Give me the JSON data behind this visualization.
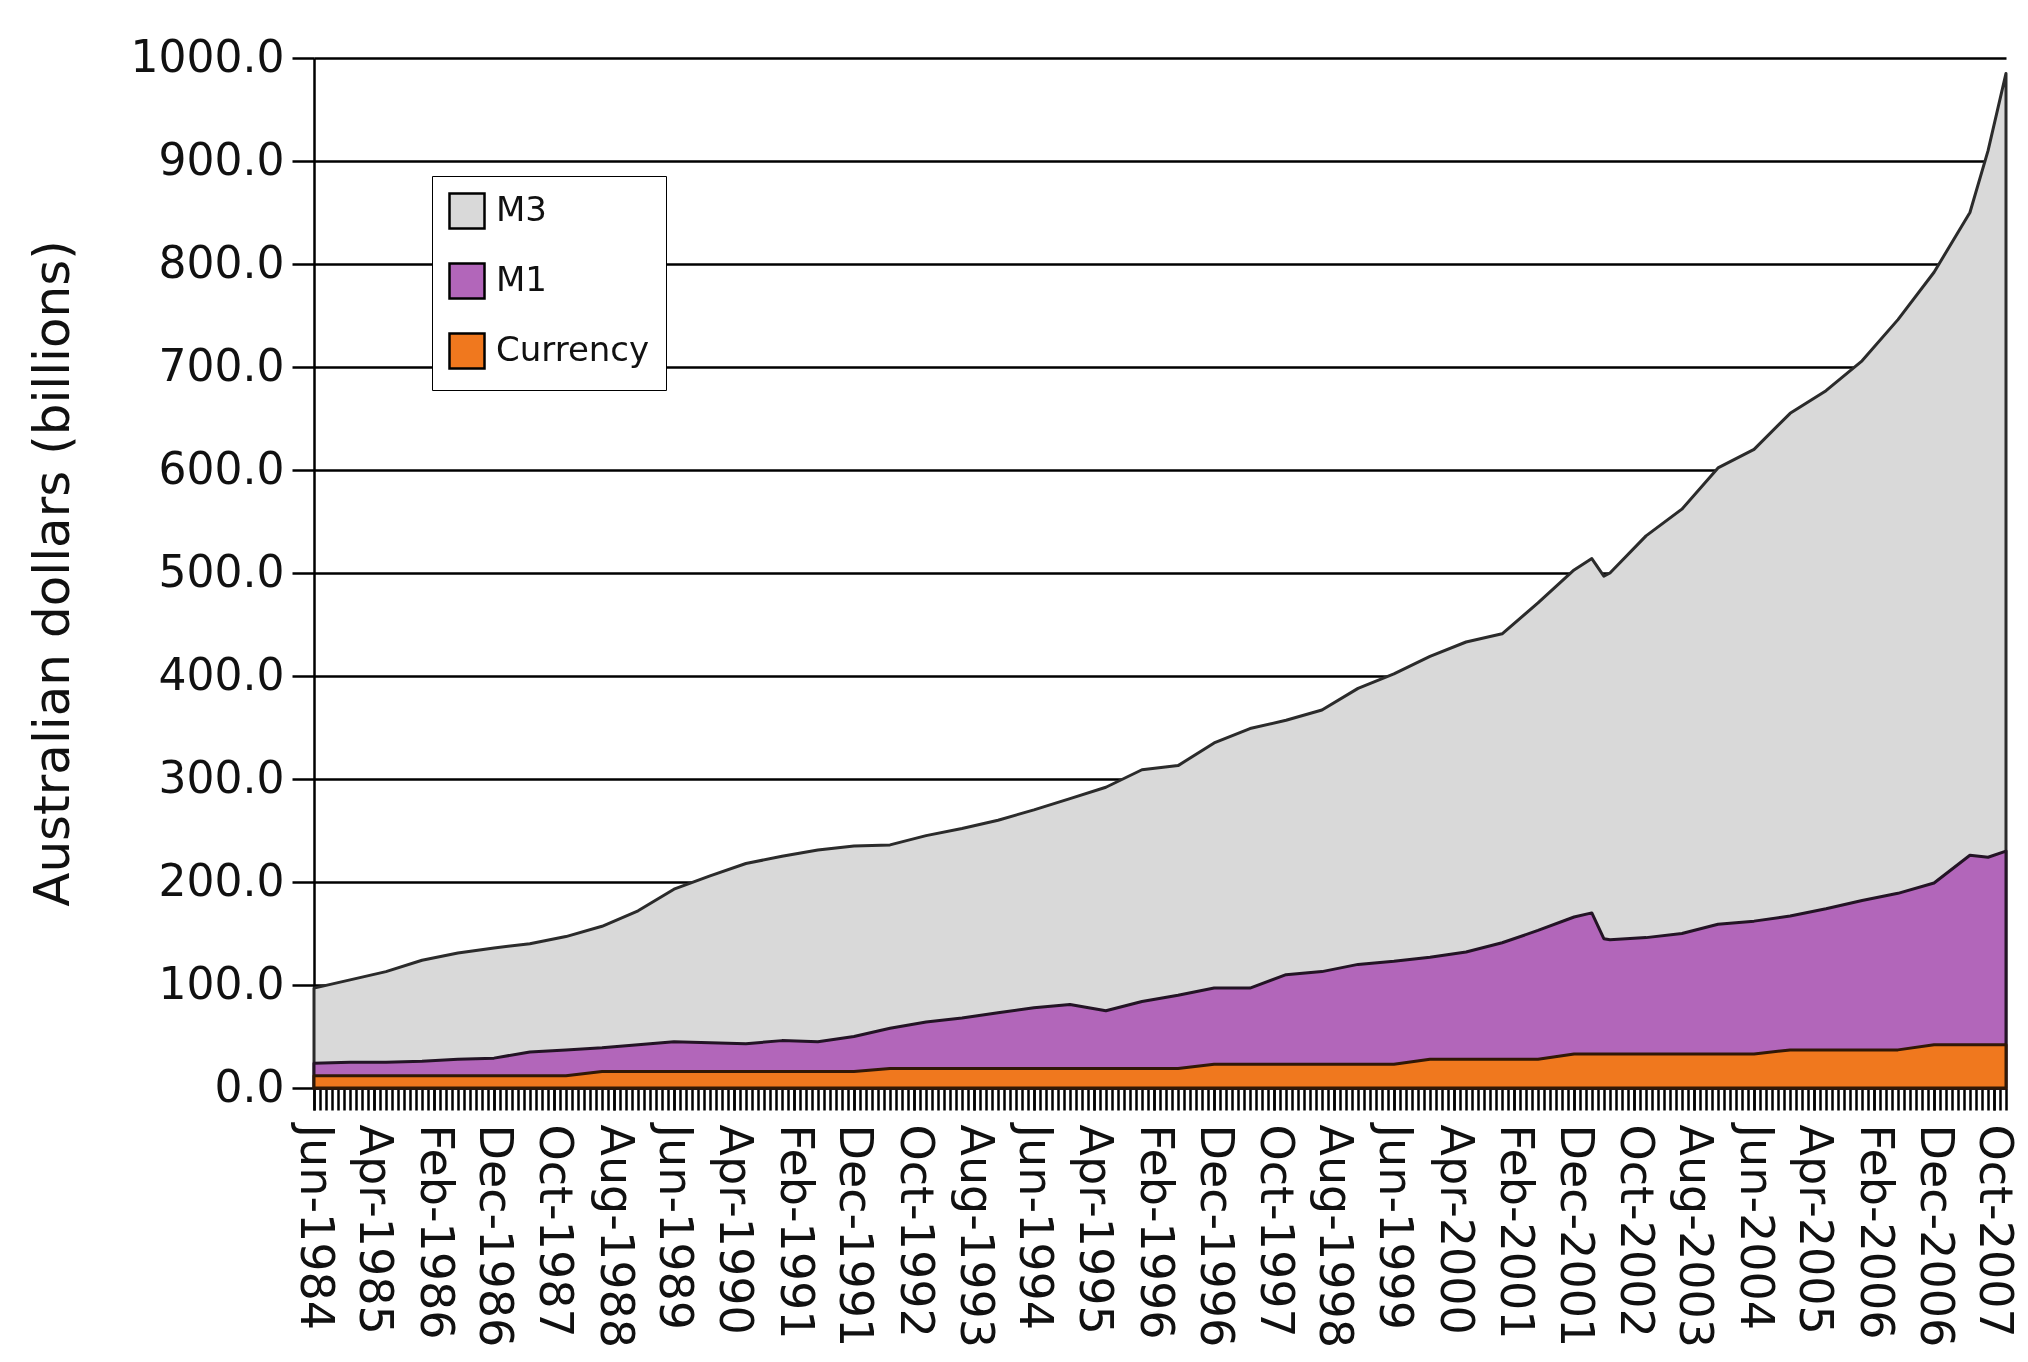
{
  "chart_data": {
    "type": "area",
    "ylabel": "Australian dollars (billions)",
    "x": [
      "1984-06",
      "1984-12",
      "1985-06",
      "1985-12",
      "1986-06",
      "1986-12",
      "1987-06",
      "1987-12",
      "1988-06",
      "1988-12",
      "1989-06",
      "1989-12",
      "1990-06",
      "1990-12",
      "1991-06",
      "1991-12",
      "1992-06",
      "1992-12",
      "1993-06",
      "1993-12",
      "1994-06",
      "1994-12",
      "1995-06",
      "1995-12",
      "1996-06",
      "1996-12",
      "1997-06",
      "1997-12",
      "1998-06",
      "1998-12",
      "1999-06",
      "1999-12",
      "2000-06",
      "2000-12",
      "2001-06",
      "2001-12",
      "2002-03",
      "2002-05",
      "2002-06",
      "2002-12",
      "2003-06",
      "2003-12",
      "2004-06",
      "2004-12",
      "2005-06",
      "2005-12",
      "2006-06",
      "2006-12",
      "2007-06",
      "2007-09",
      "2007-12"
    ],
    "series": [
      {
        "name": "M3",
        "color": "#d9d9d9",
        "values": [
          97,
          105,
          113,
          124,
          131,
          136,
          140,
          147,
          157,
          172,
          193,
          206,
          218,
          225,
          231,
          235,
          236,
          245,
          252,
          260,
          270,
          281,
          292,
          309,
          313,
          335,
          349,
          357,
          367,
          388,
          402,
          419,
          433,
          441,
          471,
          503,
          514,
          497,
          500,
          536,
          562,
          602,
          620,
          655,
          677,
          706,
          746,
          792,
          850,
          910,
          985
        ]
      },
      {
        "name": "M1",
        "color": "#b266ba",
        "values": [
          24,
          25,
          25,
          26,
          28,
          29,
          35,
          37,
          39,
          42,
          45,
          44,
          43,
          46,
          45,
          50,
          58,
          64,
          68,
          73,
          78,
          81,
          75,
          84,
          90,
          97,
          97,
          110,
          113,
          120,
          123,
          127,
          132,
          141,
          153,
          166,
          170,
          145,
          144,
          146,
          150,
          159,
          162,
          167,
          174,
          182,
          189,
          199,
          226,
          224,
          230
        ]
      },
      {
        "name": "Currency",
        "color": "#f0781e",
        "values": [
          12,
          12,
          12,
          12,
          12,
          12,
          12,
          12,
          16,
          16,
          16,
          16,
          16,
          16,
          16,
          16,
          19,
          19,
          19,
          19,
          19,
          19,
          19,
          19,
          19,
          23,
          23,
          23,
          23,
          23,
          23,
          28,
          28,
          28,
          28,
          33,
          33,
          33,
          33,
          33,
          33,
          33,
          33,
          37,
          37,
          37,
          37,
          42,
          42,
          42,
          42
        ]
      }
    ],
    "xlim": [
      "1984-06",
      "2007-12"
    ],
    "xticks": [
      {
        "value": "1984-06",
        "label": "Jun-1984"
      },
      {
        "value": "1985-04",
        "label": "Apr-1985"
      },
      {
        "value": "1986-02",
        "label": "Feb-1986"
      },
      {
        "value": "1986-12",
        "label": "Dec-1986"
      },
      {
        "value": "1987-10",
        "label": "Oct-1987"
      },
      {
        "value": "1988-08",
        "label": "Aug-1988"
      },
      {
        "value": "1989-06",
        "label": "Jun-1989"
      },
      {
        "value": "1990-04",
        "label": "Apr-1990"
      },
      {
        "value": "1991-02",
        "label": "Feb-1991"
      },
      {
        "value": "1991-12",
        "label": "Dec-1991"
      },
      {
        "value": "1992-10",
        "label": "Oct-1992"
      },
      {
        "value": "1993-08",
        "label": "Aug-1993"
      },
      {
        "value": "1994-06",
        "label": "Jun-1994"
      },
      {
        "value": "1995-04",
        "label": "Apr-1995"
      },
      {
        "value": "1996-02",
        "label": "Feb-1996"
      },
      {
        "value": "1996-12",
        "label": "Dec-1996"
      },
      {
        "value": "1997-10",
        "label": "Oct-1997"
      },
      {
        "value": "1998-08",
        "label": "Aug-1998"
      },
      {
        "value": "1999-06",
        "label": "Jun-1999"
      },
      {
        "value": "2000-04",
        "label": "Apr-2000"
      },
      {
        "value": "2001-02",
        "label": "Feb-2001"
      },
      {
        "value": "2001-12",
        "label": "Dec-2001"
      },
      {
        "value": "2002-10",
        "label": "Oct-2002"
      },
      {
        "value": "2003-08",
        "label": "Aug-2003"
      },
      {
        "value": "2004-06",
        "label": "Jun-2004"
      },
      {
        "value": "2005-04",
        "label": "Apr-2005"
      },
      {
        "value": "2006-02",
        "label": "Feb-2006"
      },
      {
        "value": "2006-12",
        "label": "Dec-2006"
      },
      {
        "value": "2007-10",
        "label": "Oct-2007"
      }
    ],
    "ylim": [
      0,
      1000
    ],
    "yticks": [
      {
        "value": 0,
        "label": "0.0"
      },
      {
        "value": 100,
        "label": "100.0"
      },
      {
        "value": 200,
        "label": "200.0"
      },
      {
        "value": 300,
        "label": "300.0"
      },
      {
        "value": 400,
        "label": "400.0"
      },
      {
        "value": 500,
        "label": "500.0"
      },
      {
        "value": 600,
        "label": "600.0"
      },
      {
        "value": 700,
        "label": "700.0"
      },
      {
        "value": 800,
        "label": "800.0"
      },
      {
        "value": 900,
        "label": "900.0"
      },
      {
        "value": 1000,
        "label": "1000.0"
      }
    ],
    "grid": "y",
    "legend": "top left"
  }
}
